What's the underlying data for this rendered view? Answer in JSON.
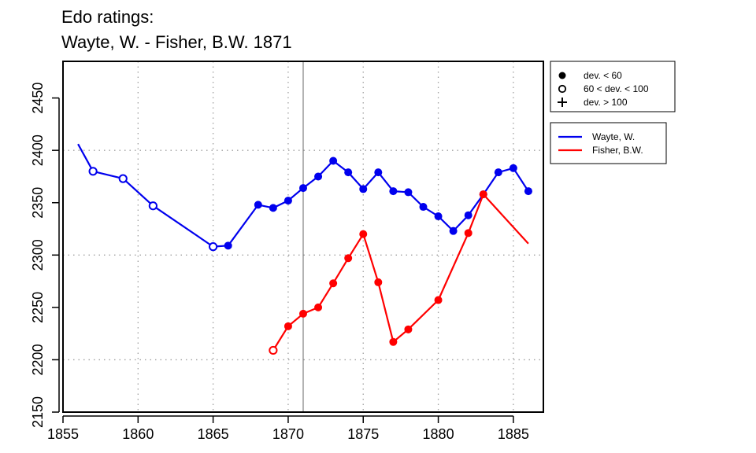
{
  "title_line1": "Edo ratings:",
  "title_line2": "Wayte, W. - Fisher, B.W. 1871",
  "chart_data": {
    "type": "line",
    "title": "Edo ratings: Wayte, W. - Fisher, B.W. 1871",
    "xlim": [
      1855,
      1887
    ],
    "ylim": [
      2150,
      2485
    ],
    "x_ticks": [
      1855,
      1860,
      1865,
      1870,
      1875,
      1880,
      1885
    ],
    "y_ticks": [
      2150,
      2200,
      2250,
      2300,
      2350,
      2400,
      2450
    ],
    "grid": "dotted",
    "grid_x": [
      1860,
      1865,
      1870,
      1875,
      1880,
      1885
    ],
    "grid_y": [
      2200,
      2300,
      2400
    ],
    "marker_year": 1871,
    "deviation_legend": [
      {
        "symbol": "filled",
        "label": "dev. < 60"
      },
      {
        "symbol": "open",
        "label": "60 < dev. < 100"
      },
      {
        "symbol": "plus",
        "label": "dev. > 100"
      }
    ],
    "legend_placement": "right",
    "series": [
      {
        "name": "Wayte, W.",
        "color": "#0000ee",
        "points": [
          {
            "x": 1856,
            "y": 2406,
            "marker": "none"
          },
          {
            "x": 1857,
            "y": 2380,
            "marker": "open"
          },
          {
            "x": 1859,
            "y": 2373,
            "marker": "open"
          },
          {
            "x": 1861,
            "y": 2347,
            "marker": "open"
          },
          {
            "x": 1865,
            "y": 2308,
            "marker": "open"
          },
          {
            "x": 1866,
            "y": 2309,
            "marker": "filled"
          },
          {
            "x": 1868,
            "y": 2348,
            "marker": "filled"
          },
          {
            "x": 1869,
            "y": 2345,
            "marker": "filled"
          },
          {
            "x": 1870,
            "y": 2352,
            "marker": "filled"
          },
          {
            "x": 1871,
            "y": 2364,
            "marker": "filled"
          },
          {
            "x": 1872,
            "y": 2375,
            "marker": "filled"
          },
          {
            "x": 1873,
            "y": 2390,
            "marker": "filled"
          },
          {
            "x": 1874,
            "y": 2379,
            "marker": "filled"
          },
          {
            "x": 1875,
            "y": 2363,
            "marker": "filled"
          },
          {
            "x": 1876,
            "y": 2379,
            "marker": "filled"
          },
          {
            "x": 1877,
            "y": 2361,
            "marker": "filled"
          },
          {
            "x": 1878,
            "y": 2360,
            "marker": "filled"
          },
          {
            "x": 1879,
            "y": 2346,
            "marker": "filled"
          },
          {
            "x": 1880,
            "y": 2337,
            "marker": "filled"
          },
          {
            "x": 1881,
            "y": 2323,
            "marker": "filled"
          },
          {
            "x": 1882,
            "y": 2338,
            "marker": "filled"
          },
          {
            "x": 1883,
            "y": 2358,
            "marker": "filled"
          },
          {
            "x": 1884,
            "y": 2379,
            "marker": "filled"
          },
          {
            "x": 1885,
            "y": 2383,
            "marker": "filled"
          },
          {
            "x": 1886,
            "y": 2361,
            "marker": "filled"
          }
        ]
      },
      {
        "name": "Fisher, B.W.",
        "color": "#ff0000",
        "points": [
          {
            "x": 1869,
            "y": 2209,
            "marker": "open"
          },
          {
            "x": 1870,
            "y": 2232,
            "marker": "filled"
          },
          {
            "x": 1871,
            "y": 2244,
            "marker": "filled"
          },
          {
            "x": 1872,
            "y": 2250,
            "marker": "filled"
          },
          {
            "x": 1873,
            "y": 2273,
            "marker": "filled"
          },
          {
            "x": 1874,
            "y": 2297,
            "marker": "filled"
          },
          {
            "x": 1875,
            "y": 2320,
            "marker": "filled"
          },
          {
            "x": 1876,
            "y": 2274,
            "marker": "filled"
          },
          {
            "x": 1877,
            "y": 2217,
            "marker": "filled"
          },
          {
            "x": 1878,
            "y": 2229,
            "marker": "filled"
          },
          {
            "x": 1880,
            "y": 2257,
            "marker": "filled"
          },
          {
            "x": 1882,
            "y": 2321,
            "marker": "filled"
          },
          {
            "x": 1883,
            "y": 2358,
            "marker": "filled"
          },
          {
            "x": 1886,
            "y": 2311,
            "marker": "none"
          }
        ]
      }
    ]
  }
}
